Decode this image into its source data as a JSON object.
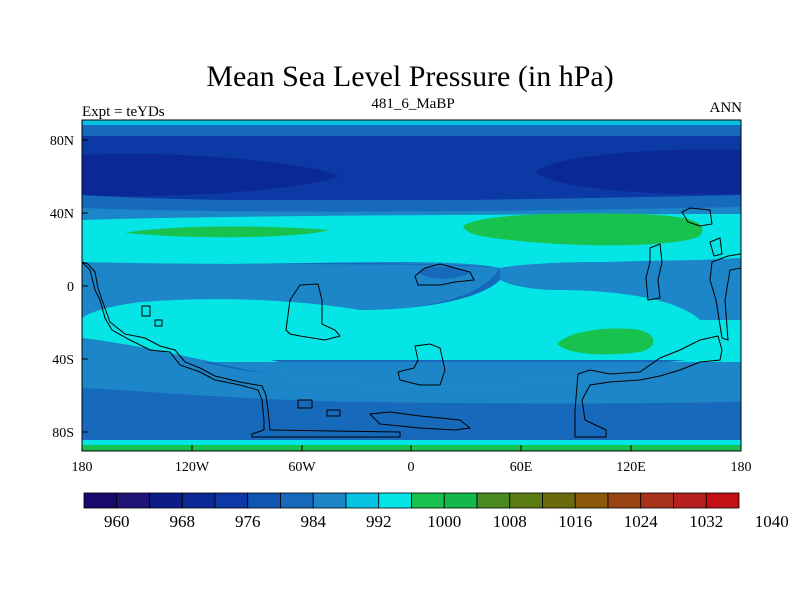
{
  "header": {
    "title": "Mean Sea Level Pressure (in hPa)",
    "left_label": "Expt = teYDs",
    "center_label": "481_6_MaBP",
    "right_label": "ANN"
  },
  "colors": {
    "levels": [
      "#1a0a6e",
      "#1e1577",
      "#0d1c87",
      "#0a2896",
      "#0b3aa6",
      "#1055b3",
      "#1769bc",
      "#1d86c8",
      "#06c3e3",
      "#06e5e5",
      "#17c24e",
      "#13b84a",
      "#4a8a22",
      "#5a7a14",
      "#6c6a0c",
      "#8a5a0a",
      "#984312",
      "#a8321a",
      "#b81f1f",
      "#c40f14"
    ]
  },
  "chart_data": {
    "type": "contour-map",
    "title": "Mean Sea Level Pressure (in hPa)",
    "units": "hPa",
    "x_ticks": [
      "180",
      "120W",
      "60W",
      "0",
      "60E",
      "120E",
      "180"
    ],
    "y_ticks": [
      "80N",
      "40N",
      "0",
      "40S",
      "80S"
    ],
    "colorbar_labels": [
      "960",
      "968",
      "976",
      "984",
      "992",
      "1000",
      "1008",
      "1016",
      "1024",
      "1032",
      "1040"
    ],
    "features": [
      {
        "region": "high-latitude bands",
        "band": "960-976"
      },
      {
        "region": "mid-latitude belts",
        "band": "984-992"
      },
      {
        "region": "subtropical highs",
        "band": "1000-1008"
      }
    ]
  }
}
